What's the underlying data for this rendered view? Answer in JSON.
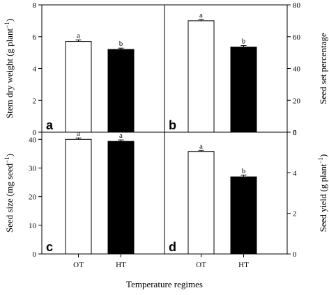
{
  "figure": {
    "shared_xlabel": "Temperature regimes",
    "bar_colors": {
      "OT": "#ffffff",
      "HT": "#000000"
    },
    "sig_colors": "#000000"
  },
  "chart_data": [
    {
      "id": "a",
      "type": "bar",
      "panel_label": "a",
      "categories": [
        "OT",
        "HT"
      ],
      "values": [
        5.7,
        5.2
      ],
      "errors": [
        0.1,
        0.08
      ],
      "sig_letters": [
        "a",
        "b"
      ],
      "ylabel": "Stem dry weight (g plant",
      "ylabel_sup": "−1",
      "ylabel_tail": ")",
      "ylim": [
        0,
        8
      ],
      "yticks": [
        0,
        2,
        4,
        6,
        8
      ],
      "yaxis_side": "left"
    },
    {
      "id": "b",
      "type": "bar",
      "panel_label": "b",
      "categories": [
        "OT",
        "HT"
      ],
      "values": [
        70,
        53.5
      ],
      "errors": [
        0.8,
        0.9
      ],
      "sig_letters": [
        "a",
        "b"
      ],
      "ylabel": "Seed set percentage",
      "ylabel_sup": "",
      "ylabel_tail": "",
      "ylim": [
        0,
        80
      ],
      "yticks": [
        0,
        20,
        40,
        60,
        80
      ],
      "yaxis_side": "right"
    },
    {
      "id": "c",
      "type": "bar",
      "panel_label": "c",
      "categories": [
        "OT",
        "HT"
      ],
      "values": [
        40,
        39.3
      ],
      "errors": [
        0.5,
        0.5
      ],
      "sig_letters": [
        "a",
        "a"
      ],
      "ylabel": "Seed size (mg seed",
      "ylabel_sup": "−1",
      "ylabel_tail": ")",
      "ylim": [
        0,
        42.5
      ],
      "yticks": [
        0,
        10,
        20,
        30,
        40
      ],
      "yaxis_side": "left"
    },
    {
      "id": "d",
      "type": "bar",
      "panel_label": "d",
      "categories": [
        "OT",
        "HT"
      ],
      "values": [
        5.05,
        3.8
      ],
      "errors": [
        0.05,
        0.08
      ],
      "sig_letters": [
        "a",
        "b"
      ],
      "ylabel": "Seed yield (g plant",
      "ylabel_sup": "−1",
      "ylabel_tail": ")",
      "ylim": [
        0,
        6
      ],
      "yticks": [
        0,
        2,
        4,
        6
      ],
      "yaxis_side": "right"
    }
  ]
}
